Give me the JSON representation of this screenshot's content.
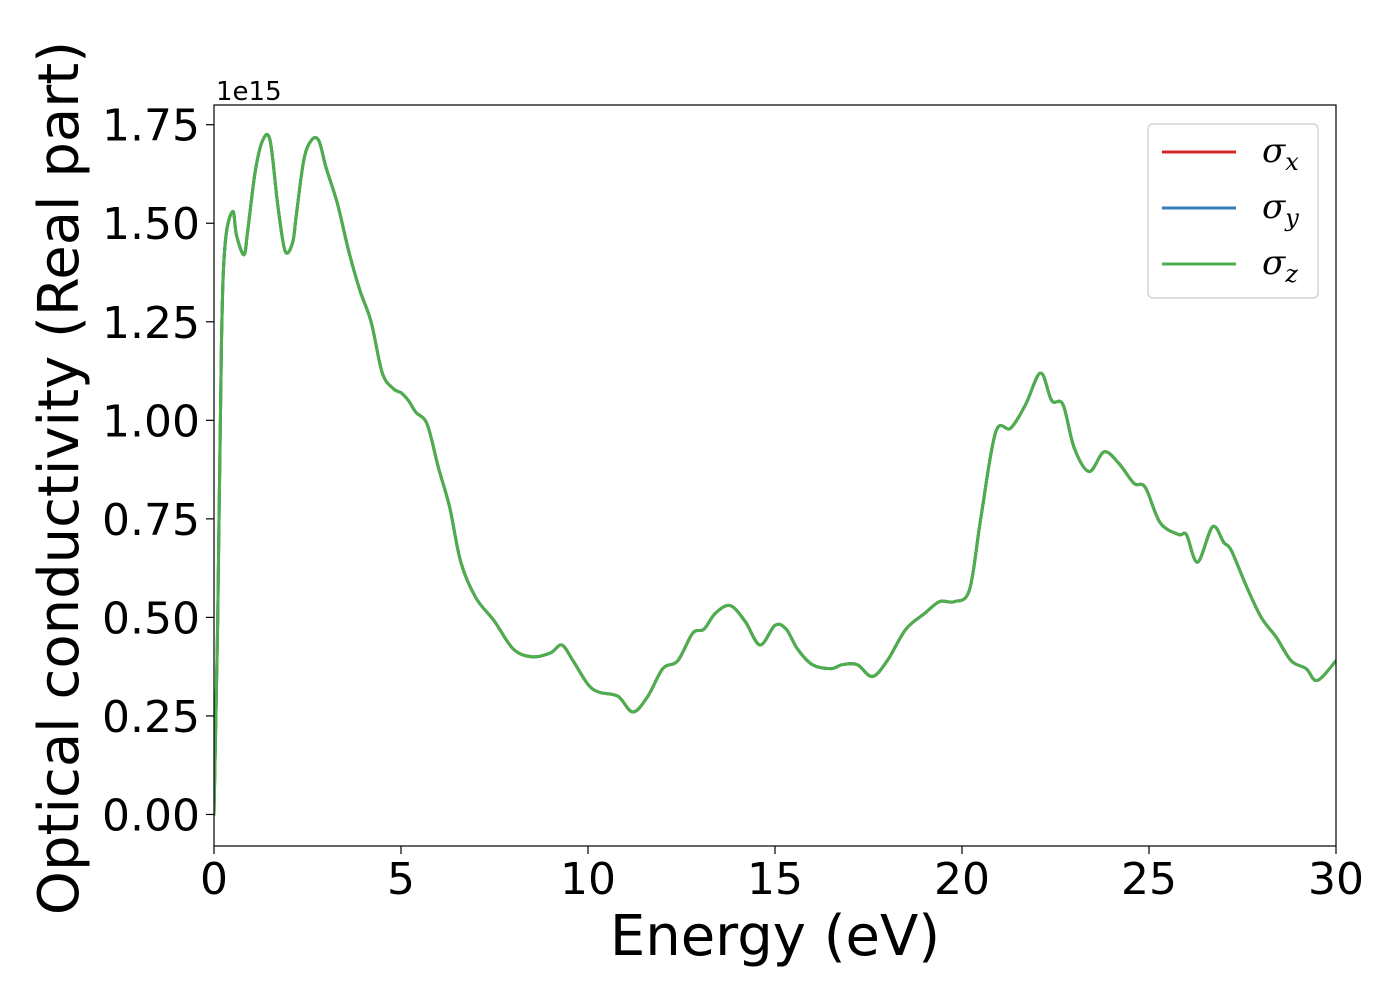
{
  "chart_data": {
    "type": "line",
    "title": "",
    "xlabel": "Energy (eV)",
    "ylabel": "Optical conductivity (Real part)",
    "y_offset_label": "1e15",
    "xlim": [
      0,
      30
    ],
    "ylim": [
      -0.08,
      1.8
    ],
    "x_ticks": [
      0,
      5,
      10,
      15,
      20,
      25,
      30
    ],
    "x_tick_labels": [
      "0",
      "5",
      "10",
      "15",
      "20",
      "25",
      "30"
    ],
    "y_ticks": [
      0.0,
      0.25,
      0.5,
      0.75,
      1.0,
      1.25,
      1.5,
      1.75
    ],
    "y_tick_labels": [
      "0.00",
      "0.25",
      "0.50",
      "0.75",
      "1.00",
      "1.25",
      "1.50",
      "1.75"
    ],
    "grid": false,
    "legend_position": "top-right",
    "x": [
      0,
      0.1,
      0.2,
      0.3,
      0.5,
      0.6,
      0.8,
      0.9,
      1.1,
      1.3,
      1.5,
      1.7,
      1.9,
      2.1,
      2.2,
      2.4,
      2.6,
      2.8,
      3.0,
      3.3,
      3.6,
      3.9,
      4.2,
      4.5,
      4.8,
      5.0,
      5.2,
      5.4,
      5.7,
      6.0,
      6.3,
      6.6,
      7.0,
      7.5,
      8.0,
      8.5,
      9.0,
      9.3,
      9.6,
      10.0,
      10.3,
      10.8,
      11.2,
      11.6,
      12.0,
      12.4,
      12.8,
      13.1,
      13.4,
      13.8,
      14.2,
      14.6,
      15.0,
      15.3,
      15.6,
      16.0,
      16.5,
      16.8,
      17.2,
      17.6,
      18.0,
      18.5,
      19.0,
      19.4,
      19.8,
      20.2,
      20.5,
      20.9,
      21.3,
      21.7,
      22.1,
      22.4,
      22.7,
      23.0,
      23.4,
      23.8,
      24.2,
      24.6,
      24.9,
      25.3,
      25.8,
      26.0,
      26.3,
      26.7,
      27.0,
      27.2,
      27.6,
      28.0,
      28.4,
      28.8,
      29.2,
      29.5,
      30.0
    ],
    "series": [
      {
        "name": "σx",
        "label_main": "σ",
        "label_sub": "x",
        "color": "#d62728",
        "values": [
          0.0,
          0.5,
          1.2,
          1.45,
          1.53,
          1.47,
          1.42,
          1.48,
          1.63,
          1.71,
          1.71,
          1.55,
          1.43,
          1.45,
          1.52,
          1.66,
          1.71,
          1.71,
          1.64,
          1.55,
          1.43,
          1.33,
          1.25,
          1.12,
          1.08,
          1.07,
          1.05,
          1.02,
          0.99,
          0.88,
          0.78,
          0.64,
          0.55,
          0.49,
          0.42,
          0.4,
          0.41,
          0.43,
          0.39,
          0.33,
          0.31,
          0.3,
          0.26,
          0.3,
          0.37,
          0.39,
          0.46,
          0.47,
          0.51,
          0.53,
          0.49,
          0.43,
          0.48,
          0.47,
          0.42,
          0.38,
          0.37,
          0.38,
          0.38,
          0.35,
          0.39,
          0.47,
          0.51,
          0.54,
          0.54,
          0.57,
          0.75,
          0.97,
          0.98,
          1.04,
          1.12,
          1.05,
          1.04,
          0.93,
          0.87,
          0.92,
          0.89,
          0.84,
          0.83,
          0.74,
          0.71,
          0.71,
          0.64,
          0.73,
          0.69,
          0.67,
          0.58,
          0.5,
          0.45,
          0.39,
          0.37,
          0.34,
          0.39
        ]
      },
      {
        "name": "σy",
        "label_main": "σ",
        "label_sub": "y",
        "color": "#377eb8",
        "values": [
          0.0,
          0.5,
          1.2,
          1.45,
          1.53,
          1.47,
          1.42,
          1.48,
          1.63,
          1.71,
          1.71,
          1.55,
          1.43,
          1.45,
          1.52,
          1.66,
          1.71,
          1.71,
          1.64,
          1.55,
          1.43,
          1.33,
          1.25,
          1.12,
          1.08,
          1.07,
          1.05,
          1.02,
          0.99,
          0.88,
          0.78,
          0.64,
          0.55,
          0.49,
          0.42,
          0.4,
          0.41,
          0.43,
          0.39,
          0.33,
          0.31,
          0.3,
          0.26,
          0.3,
          0.37,
          0.39,
          0.46,
          0.47,
          0.51,
          0.53,
          0.49,
          0.43,
          0.48,
          0.47,
          0.42,
          0.38,
          0.37,
          0.38,
          0.38,
          0.35,
          0.39,
          0.47,
          0.51,
          0.54,
          0.54,
          0.57,
          0.75,
          0.97,
          0.98,
          1.04,
          1.12,
          1.05,
          1.04,
          0.93,
          0.87,
          0.92,
          0.89,
          0.84,
          0.83,
          0.74,
          0.71,
          0.71,
          0.64,
          0.73,
          0.69,
          0.67,
          0.58,
          0.5,
          0.45,
          0.39,
          0.37,
          0.34,
          0.39
        ]
      },
      {
        "name": "σz",
        "label_main": "σ",
        "label_sub": "z",
        "color": "#4daf4a",
        "values": [
          0.0,
          0.5,
          1.2,
          1.45,
          1.53,
          1.47,
          1.42,
          1.48,
          1.63,
          1.71,
          1.71,
          1.55,
          1.43,
          1.45,
          1.52,
          1.66,
          1.71,
          1.71,
          1.64,
          1.55,
          1.43,
          1.33,
          1.25,
          1.12,
          1.08,
          1.07,
          1.05,
          1.02,
          0.99,
          0.88,
          0.78,
          0.64,
          0.55,
          0.49,
          0.42,
          0.4,
          0.41,
          0.43,
          0.39,
          0.33,
          0.31,
          0.3,
          0.26,
          0.3,
          0.37,
          0.39,
          0.46,
          0.47,
          0.51,
          0.53,
          0.49,
          0.43,
          0.48,
          0.47,
          0.42,
          0.38,
          0.37,
          0.38,
          0.38,
          0.35,
          0.39,
          0.47,
          0.51,
          0.54,
          0.54,
          0.57,
          0.75,
          0.97,
          0.98,
          1.04,
          1.12,
          1.05,
          1.04,
          0.93,
          0.87,
          0.92,
          0.89,
          0.84,
          0.83,
          0.74,
          0.71,
          0.71,
          0.64,
          0.73,
          0.69,
          0.67,
          0.58,
          0.5,
          0.45,
          0.39,
          0.37,
          0.34,
          0.39
        ]
      }
    ]
  }
}
